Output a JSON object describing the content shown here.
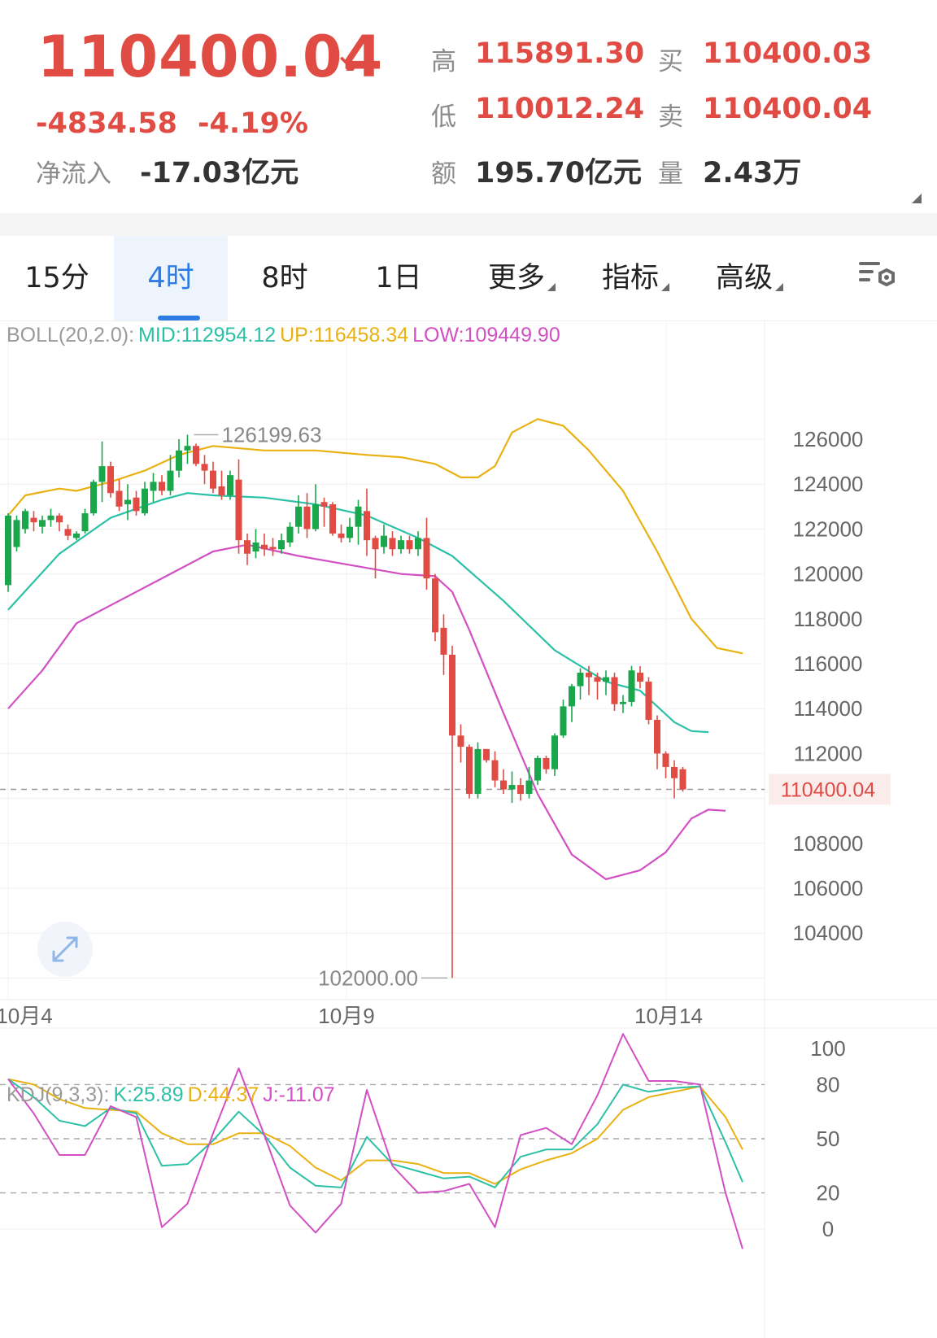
{
  "header": {
    "price": "110400.04",
    "arrow": "↘",
    "change": "-4834.58",
    "change_pct": "-4.19%",
    "netflow_label": "净流入",
    "netflow_value": "-17.03亿元",
    "stats": [
      {
        "label": "高",
        "value": "115891.30",
        "color": "red"
      },
      {
        "label": "买",
        "value": "110400.03",
        "color": "red"
      },
      {
        "label": "低",
        "value": "110012.24",
        "color": "red"
      },
      {
        "label": "卖",
        "value": "110400.04",
        "color": "red"
      },
      {
        "label": "额",
        "value": "195.70亿元",
        "color": "dark"
      },
      {
        "label": "量",
        "value": "2.43万",
        "color": "dark"
      }
    ]
  },
  "tabs": [
    {
      "label": "15分",
      "active": false,
      "dropdown": false
    },
    {
      "label": "4时",
      "active": true,
      "dropdown": false
    },
    {
      "label": "8时",
      "active": false,
      "dropdown": false
    },
    {
      "label": "1日",
      "active": false,
      "dropdown": false
    },
    {
      "label": "更多",
      "active": false,
      "dropdown": true
    },
    {
      "label": "指标",
      "active": false,
      "dropdown": true
    },
    {
      "label": "高级",
      "active": false,
      "dropdown": true
    }
  ],
  "icons": {
    "settings": "chart-settings-icon",
    "expand": "expand-icon"
  },
  "colors": {
    "up": "#1aa64a",
    "down": "#e04b43",
    "mid": "#2cc1a6",
    "upper": "#e9b111",
    "lower": "#d24fc4",
    "accent": "#2d7be5"
  },
  "chart_data": [
    {
      "type": "candlestick",
      "indicator_label": "BOLL(20,2.0):",
      "legend": [
        {
          "text": "MID:112954.12",
          "color": "#2cc1a6"
        },
        {
          "text": "UP:116458.34",
          "color": "#e9b111"
        },
        {
          "text": "LOW:109449.90",
          "color": "#d24fc4"
        }
      ],
      "y_ticks": [
        126000,
        124000,
        122000,
        120000,
        118000,
        116000,
        114000,
        112000,
        108000,
        106000,
        104000
      ],
      "y_tick_labels": [
        "126000",
        "124000",
        "122000",
        "120000",
        "118000",
        "116000",
        "114000",
        "112000",
        "108000",
        "106000",
        "104000"
      ],
      "x_tick_labels": [
        "10月4",
        "10月9",
        "10月14"
      ],
      "current_price_label": "110400.04",
      "current_price": 110400.04,
      "max_label": "126199.63",
      "min_label": "102000.00",
      "ylim": [
        101300,
        129500
      ],
      "candles": [
        [
          119500,
          122600,
          119200,
          122700
        ],
        [
          121200,
          122400,
          121000,
          122600
        ],
        [
          122000,
          122800,
          121800,
          122900
        ],
        [
          122500,
          122300,
          121900,
          122800
        ],
        [
          122100,
          122400,
          121800,
          122600
        ],
        [
          122400,
          122600,
          122100,
          122900
        ],
        [
          122600,
          122300,
          121900,
          122700
        ],
        [
          122000,
          121700,
          121500,
          122200
        ],
        [
          121600,
          121800,
          121500,
          121900
        ],
        [
          121900,
          122700,
          121800,
          122900
        ],
        [
          122700,
          124100,
          122600,
          124200
        ],
        [
          124100,
          124800,
          123200,
          125900
        ],
        [
          124800,
          123600,
          123400,
          125000
        ],
        [
          123700,
          123000,
          122800,
          124200
        ],
        [
          123100,
          123300,
          122400,
          124000
        ],
        [
          123400,
          122800,
          122600,
          123700
        ],
        [
          122700,
          123800,
          122600,
          124100
        ],
        [
          123700,
          124100,
          123200,
          124500
        ],
        [
          124100,
          123700,
          123500,
          124400
        ],
        [
          123700,
          124600,
          123500,
          125300
        ],
        [
          124600,
          125500,
          124300,
          126000
        ],
        [
          125500,
          125700,
          124900,
          126199.63
        ],
        [
          125700,
          124900,
          124800,
          125800
        ],
        [
          124900,
          124600,
          124000,
          125300
        ],
        [
          124600,
          123800,
          123600,
          125000
        ],
        [
          123900,
          123500,
          123300,
          124600
        ],
        [
          123500,
          124400,
          123300,
          124600
        ],
        [
          124200,
          121500,
          120900,
          125100
        ],
        [
          121500,
          120900,
          120400,
          121800
        ],
        [
          121000,
          121400,
          120700,
          122000
        ],
        [
          121300,
          121100,
          120800,
          121800
        ],
        [
          121200,
          121100,
          120800,
          121600
        ],
        [
          121100,
          121500,
          120900,
          121800
        ],
        [
          121400,
          122100,
          121200,
          122300
        ],
        [
          122100,
          123000,
          121800,
          123500
        ],
        [
          123000,
          122000,
          121600,
          123600
        ],
        [
          122000,
          123100,
          121900,
          124000
        ],
        [
          123200,
          123000,
          122100,
          123400
        ],
        [
          123100,
          121800,
          121700,
          123200
        ],
        [
          121800,
          121600,
          121400,
          122200
        ],
        [
          121600,
          122100,
          121400,
          122500
        ],
        [
          122100,
          123000,
          121300,
          123300
        ],
        [
          122800,
          121500,
          120800,
          123800
        ],
        [
          121600,
          121100,
          119800,
          121700
        ],
        [
          121200,
          121700,
          120900,
          122200
        ],
        [
          121600,
          121100,
          120800,
          121900
        ],
        [
          121100,
          121500,
          120900,
          121700
        ],
        [
          121500,
          121100,
          120900,
          121700
        ],
        [
          121100,
          121600,
          120800,
          121900
        ],
        [
          121600,
          119800,
          119300,
          122500
        ],
        [
          119800,
          117400,
          117000,
          120000
        ],
        [
          117600,
          116400,
          115500,
          118200
        ],
        [
          116400,
          112800,
          102000,
          116800
        ],
        [
          112800,
          112300,
          111600,
          113300
        ],
        [
          112300,
          110200,
          110000,
          112400
        ],
        [
          110200,
          112200,
          110000,
          112500
        ],
        [
          112200,
          111700,
          111600,
          112200
        ],
        [
          111700,
          110800,
          110500,
          112100
        ],
        [
          110800,
          110400,
          110200,
          111300
        ],
        [
          110400,
          110600,
          109800,
          111200
        ],
        [
          110600,
          110200,
          109900,
          110900
        ],
        [
          110200,
          110800,
          110000,
          111400
        ],
        [
          110800,
          111800,
          110600,
          111900
        ],
        [
          111800,
          111300,
          111100,
          111900
        ],
        [
          111300,
          112800,
          111000,
          112900
        ],
        [
          112800,
          114100,
          112700,
          114400
        ],
        [
          114100,
          115000,
          113400,
          115100
        ],
        [
          115000,
          115600,
          114400,
          115800
        ],
        [
          115600,
          115400,
          114600,
          115900
        ],
        [
          115400,
          115200,
          114400,
          115600
        ],
        [
          115200,
          115400,
          114600,
          115700
        ],
        [
          115400,
          114200,
          113900,
          115600
        ],
        [
          114200,
          114300,
          113800,
          114600
        ],
        [
          114300,
          115700,
          114100,
          115900
        ],
        [
          115600,
          115200,
          114900,
          115891.3
        ],
        [
          115200,
          113500,
          113300,
          115400
        ],
        [
          113500,
          112000,
          111300,
          113700
        ],
        [
          112000,
          111400,
          110900,
          112100
        ],
        [
          111400,
          110900,
          110000,
          111700
        ],
        [
          111300,
          110400.04,
          110300,
          111400
        ]
      ],
      "boll_mid": [
        [
          0,
          118400
        ],
        [
          6,
          120900
        ],
        [
          12,
          122500
        ],
        [
          18,
          123300
        ],
        [
          21,
          123600
        ],
        [
          24,
          123500
        ],
        [
          30,
          123400
        ],
        [
          36,
          123100
        ],
        [
          42,
          122600
        ],
        [
          48,
          121600
        ],
        [
          52,
          120800
        ],
        [
          58,
          118800
        ],
        [
          64,
          116600
        ],
        [
          70,
          115200
        ],
        [
          74,
          114800
        ],
        [
          78,
          113400
        ],
        [
          80,
          113000
        ],
        [
          82,
          112954.12
        ]
      ],
      "boll_up": [
        [
          0,
          122600
        ],
        [
          2,
          123500
        ],
        [
          6,
          123800
        ],
        [
          8,
          123700
        ],
        [
          12,
          124100
        ],
        [
          16,
          124600
        ],
        [
          20,
          125300
        ],
        [
          24,
          125700
        ],
        [
          30,
          125500
        ],
        [
          36,
          125500
        ],
        [
          42,
          125300
        ],
        [
          46,
          125200
        ],
        [
          50,
          124900
        ],
        [
          53,
          124300
        ],
        [
          55,
          124300
        ],
        [
          57,
          124800
        ],
        [
          59,
          126300
        ],
        [
          62,
          126900
        ],
        [
          65,
          126600
        ],
        [
          68,
          125500
        ],
        [
          72,
          123700
        ],
        [
          76,
          121000
        ],
        [
          80,
          118000
        ],
        [
          83,
          116700
        ],
        [
          86,
          116458.34
        ]
      ],
      "boll_low": [
        [
          0,
          114000
        ],
        [
          4,
          115700
        ],
        [
          8,
          117800
        ],
        [
          12,
          118600
        ],
        [
          18,
          119800
        ],
        [
          24,
          121000
        ],
        [
          28,
          121300
        ],
        [
          34,
          120800
        ],
        [
          40,
          120400
        ],
        [
          46,
          120000
        ],
        [
          50,
          119900
        ],
        [
          52,
          119200
        ],
        [
          54,
          117500
        ],
        [
          58,
          113800
        ],
        [
          62,
          110200
        ],
        [
          66,
          107500
        ],
        [
          70,
          106400
        ],
        [
          74,
          106800
        ],
        [
          77,
          107600
        ],
        [
          80,
          109100
        ],
        [
          82,
          109500
        ],
        [
          84,
          109449.9
        ]
      ]
    },
    {
      "type": "line",
      "indicator_label": "KDJ(9,3,3):",
      "legend": [
        {
          "text": "K:25.89",
          "color": "#2cc1a6"
        },
        {
          "text": "D:44.37",
          "color": "#e9b111"
        },
        {
          "text": "J:-11.07",
          "color": "#d24fc4"
        }
      ],
      "y_ticks": [
        100,
        80,
        50,
        20,
        0
      ],
      "y_tick_labels": [
        "100",
        "80",
        "50",
        "20",
        "0"
      ],
      "ylim": [
        -12,
        110
      ],
      "K": [
        [
          0,
          83
        ],
        [
          3,
          73
        ],
        [
          6,
          60
        ],
        [
          9,
          57
        ],
        [
          12,
          67
        ],
        [
          15,
          64
        ],
        [
          18,
          35
        ],
        [
          21,
          36
        ],
        [
          24,
          49
        ],
        [
          27,
          65
        ],
        [
          30,
          52
        ],
        [
          33,
          34
        ],
        [
          36,
          24
        ],
        [
          39,
          23
        ],
        [
          42,
          51
        ],
        [
          45,
          36
        ],
        [
          48,
          32
        ],
        [
          51,
          28
        ],
        [
          54,
          29
        ],
        [
          57,
          23
        ],
        [
          60,
          40
        ],
        [
          63,
          44
        ],
        [
          66,
          44
        ],
        [
          69,
          58
        ],
        [
          72,
          80
        ],
        [
          75,
          76
        ],
        [
          78,
          78
        ],
        [
          81,
          79
        ],
        [
          84,
          48
        ],
        [
          86,
          26
        ]
      ],
      "D": [
        [
          0,
          83
        ],
        [
          3,
          80
        ],
        [
          6,
          72
        ],
        [
          9,
          67
        ],
        [
          12,
          66
        ],
        [
          15,
          65
        ],
        [
          18,
          53
        ],
        [
          21,
          47
        ],
        [
          24,
          47
        ],
        [
          27,
          53
        ],
        [
          30,
          53
        ],
        [
          33,
          46
        ],
        [
          36,
          34
        ],
        [
          39,
          27
        ],
        [
          42,
          38
        ],
        [
          45,
          38
        ],
        [
          48,
          36
        ],
        [
          51,
          31
        ],
        [
          54,
          31
        ],
        [
          57,
          25
        ],
        [
          60,
          33
        ],
        [
          63,
          38
        ],
        [
          66,
          42
        ],
        [
          69,
          50
        ],
        [
          72,
          66
        ],
        [
          75,
          73
        ],
        [
          78,
          76
        ],
        [
          81,
          79
        ],
        [
          84,
          62
        ],
        [
          86,
          44
        ]
      ],
      "J": [
        [
          0,
          83
        ],
        [
          3,
          64
        ],
        [
          6,
          41
        ],
        [
          9,
          41
        ],
        [
          12,
          68
        ],
        [
          15,
          62
        ],
        [
          18,
          1
        ],
        [
          21,
          14
        ],
        [
          24,
          53
        ],
        [
          27,
          89
        ],
        [
          30,
          52
        ],
        [
          33,
          13
        ],
        [
          36,
          -2
        ],
        [
          39,
          14
        ],
        [
          42,
          77
        ],
        [
          45,
          35
        ],
        [
          48,
          20
        ],
        [
          51,
          21
        ],
        [
          54,
          25
        ],
        [
          57,
          1
        ],
        [
          60,
          52
        ],
        [
          63,
          56
        ],
        [
          66,
          47
        ],
        [
          69,
          74
        ],
        [
          72,
          108
        ],
        [
          75,
          82
        ],
        [
          78,
          82
        ],
        [
          81,
          80
        ],
        [
          84,
          20
        ],
        [
          86,
          -11
        ]
      ]
    }
  ]
}
